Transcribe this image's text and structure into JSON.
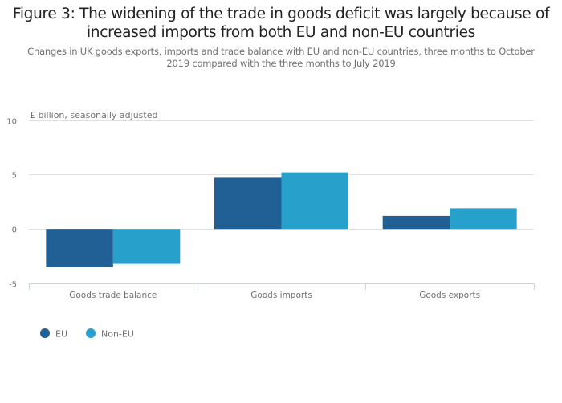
{
  "chart_data": {
    "type": "bar",
    "title": "Figure 3: The widening of the trade in goods deficit was largely because of increased imports from both EU and non-EU countries",
    "subtitle": "Changes in UK goods exports, imports and trade balance with EU and non-EU countries, three months to October 2019 compared with the three months to July 2019",
    "ylabel": "£ billion, seasonally adjusted",
    "xlabel": "",
    "categories": [
      "Goods trade balance",
      "Goods imports",
      "Goods exports"
    ],
    "series": [
      {
        "name": "EU",
        "color": "#206095",
        "values": [
          -3.5,
          4.7,
          1.2
        ]
      },
      {
        "name": "Non-EU",
        "color": "#27a0cc",
        "values": [
          -3.2,
          5.2,
          1.9
        ]
      }
    ],
    "ylim": [
      -5,
      10
    ],
    "yticks": [
      10,
      5,
      0,
      -5
    ],
    "grid": true,
    "legend_position": "bottom-left"
  }
}
